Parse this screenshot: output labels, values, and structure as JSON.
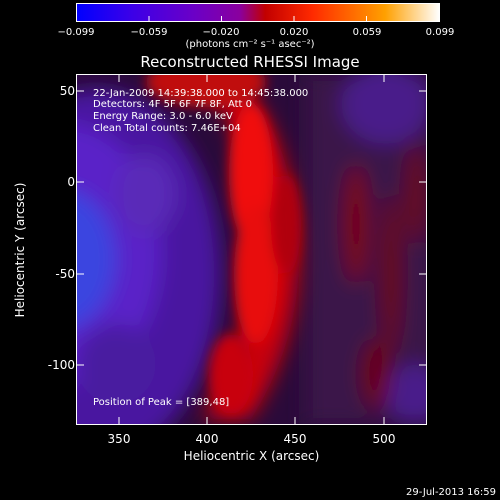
{
  "colorbar": {
    "tick_labels": [
      "−0.099",
      "−0.059",
      "−0.020",
      "0.020",
      "0.059",
      "0.099"
    ],
    "units_label": "(photons cm⁻² s⁻¹ asec⁻²)",
    "range": [
      -0.099,
      0.099
    ],
    "colors": [
      "#0000ff",
      "#3b00e8",
      "#6a00c8",
      "#8a009e",
      "#c20000",
      "#ff2a00",
      "#ffa000",
      "#ffffff"
    ]
  },
  "title": "Reconstructed RHESSI Image",
  "info_lines": [
    "22-Jan-2009 14:39:38.000 to 14:45:38.000",
    "Detectors: 4F 5F 6F 7F 8F, Att 0",
    "Energy Range: 3.0 - 6.0 keV",
    "Clean    Total counts: 7.46E+04"
  ],
  "peak_text": "Position of Peak = [389,48]",
  "axes": {
    "x_label": "Heliocentric X (arcsec)",
    "y_label": "Heliocentric Y (arcsec)",
    "x_ticks": [
      350,
      400,
      450,
      500
    ],
    "y_ticks": [
      50,
      0,
      -50,
      -100
    ],
    "x_range": [
      325,
      520
    ],
    "y_range": [
      -130,
      62
    ]
  },
  "footer": "29-Jul-2013 16:59"
}
